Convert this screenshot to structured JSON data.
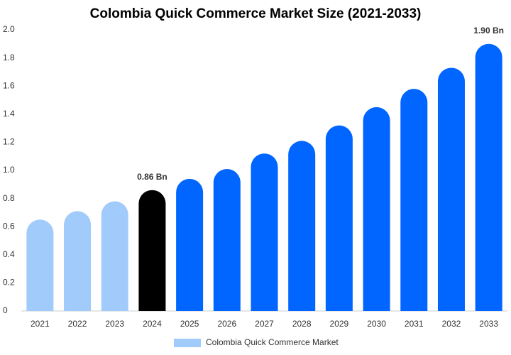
{
  "chart_data": {
    "type": "bar",
    "title": "Colombia Quick Commerce Market Size (2021-2033)",
    "categories": [
      "2021",
      "2022",
      "2023",
      "2024",
      "2025",
      "2026",
      "2027",
      "2028",
      "2029",
      "2030",
      "2031",
      "2032",
      "2033"
    ],
    "series": [
      {
        "name": "Colombia Quick Commerce Market",
        "color": "#a0cbfa",
        "bar_colors": [
          "#a0cbfa",
          "#a0cbfa",
          "#a0cbfa",
          "#000000",
          "#0066ff",
          "#0066ff",
          "#0066ff",
          "#0066ff",
          "#0066ff",
          "#0066ff",
          "#0066ff",
          "#0066ff",
          "#0066ff"
        ],
        "values": [
          0.65,
          0.71,
          0.78,
          0.86,
          0.94,
          1.01,
          1.12,
          1.21,
          1.32,
          1.45,
          1.58,
          1.73,
          1.9
        ],
        "value_labels": [
          null,
          null,
          null,
          "0.86 Bn",
          null,
          null,
          null,
          null,
          null,
          null,
          null,
          null,
          "1.90 Bn"
        ]
      }
    ],
    "ylim": [
      0,
      2
    ],
    "yticks": [
      0,
      0.2,
      0.4,
      0.6,
      0.8,
      {
        "value": 1,
        "label": "1.0"
      },
      1.2,
      1.4,
      1.6,
      1.8,
      {
        "value": 2,
        "label": "2.0"
      }
    ],
    "grid": false
  }
}
